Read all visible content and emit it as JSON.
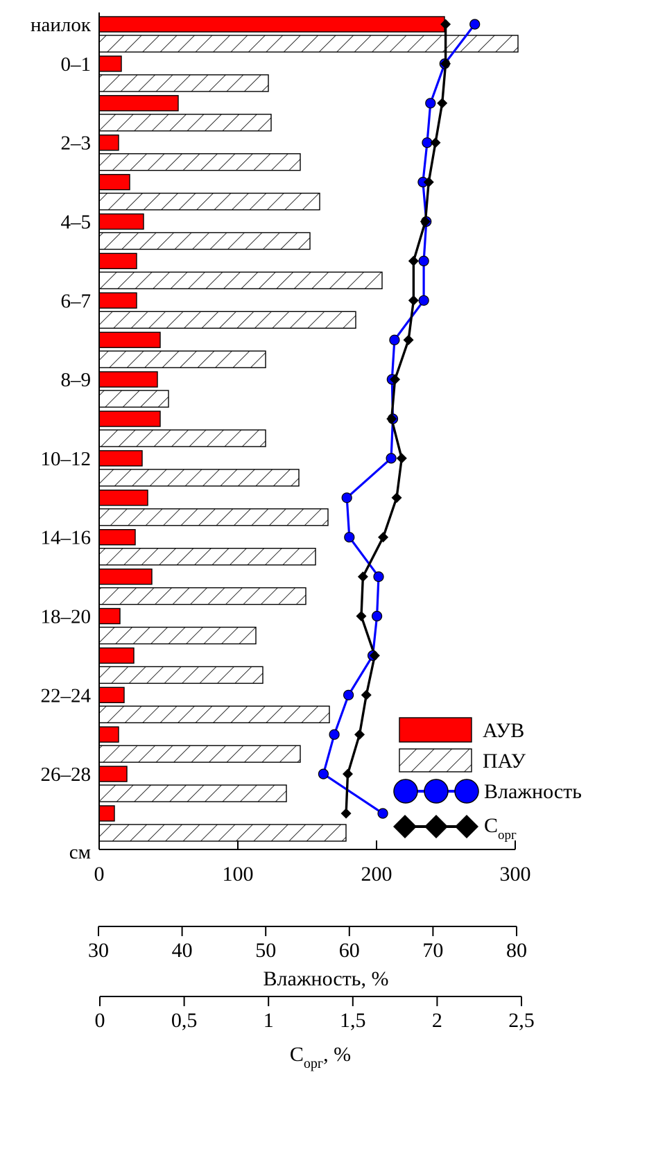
{
  "chart_data": {
    "type": "bar",
    "orientation": "horizontal",
    "title": "",
    "ylabel": "см",
    "row_labels": [
      "наилок",
      "0–1",
      "",
      "2–3",
      "",
      "4–5",
      "",
      "6–7",
      "",
      "8–9",
      "",
      "10–12",
      "",
      "14–16",
      "",
      "18–20",
      "",
      "22–24",
      "",
      "26–28",
      ""
    ],
    "bar_axis": {
      "range": [
        0,
        300
      ],
      "ticks": [
        "0",
        "100",
        "200",
        "300"
      ]
    },
    "series": [
      {
        "name": "АУВ",
        "color": "#ff0000",
        "values": [
          249,
          16,
          57,
          14,
          22,
          32,
          27,
          27,
          44,
          42,
          44,
          31,
          35,
          26,
          38,
          15,
          25,
          18,
          14,
          20,
          11
        ]
      },
      {
        "name": "ПАУ",
        "color": "#ffffff",
        "pattern": "diagonal-hatch",
        "values": [
          302,
          122,
          124,
          145,
          159,
          152,
          204,
          185,
          120,
          50,
          120,
          144,
          165,
          156,
          149,
          113,
          118,
          166,
          145,
          135,
          178
        ]
      },
      {
        "name": "Влажность",
        "axis": "Влажность, %",
        "color": "#0000ff",
        "marker": "circle",
        "values": [
          75,
          71.4,
          69.7,
          69.3,
          68.8,
          69.2,
          68.9,
          68.9,
          65.4,
          65.1,
          65.2,
          65,
          59.7,
          60,
          63.5,
          63.3,
          62.8,
          59.9,
          58.2,
          56.9,
          64
        ]
      },
      {
        "name": "Сорг",
        "name_sub": "орг",
        "name_main": "С",
        "axis": "Сорг, %",
        "color": "#000000",
        "marker": "diamond",
        "values": [
          2.05,
          2.05,
          2.03,
          1.99,
          1.95,
          1.93,
          1.86,
          1.86,
          1.83,
          1.75,
          1.73,
          1.79,
          1.76,
          1.68,
          1.56,
          1.55,
          1.63,
          1.58,
          1.54,
          1.47,
          1.46
        ]
      }
    ],
    "moisture_axis": {
      "label": "Влажность, %",
      "range": [
        30,
        80
      ],
      "ticks": [
        "30",
        "40",
        "50",
        "60",
        "70",
        "80"
      ]
    },
    "corg_axis": {
      "label_main": "С",
      "label_sub": "орг",
      "label_rest": ", %",
      "range": [
        0,
        2.5
      ],
      "ticks": [
        "0",
        "0,5",
        "1",
        "1,5",
        "2",
        "2,5"
      ]
    },
    "legend": {
      "placement": "bottom-right"
    },
    "grid": false
  }
}
